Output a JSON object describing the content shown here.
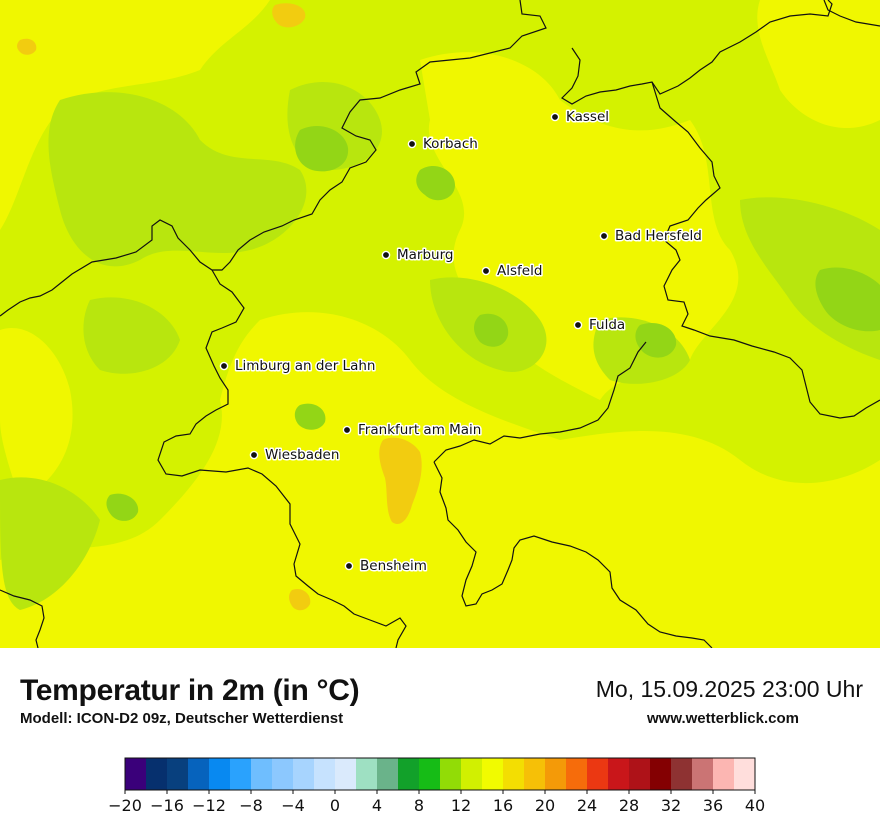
{
  "map": {
    "colors": {
      "base": "#d4f200",
      "warm": "#f0f700",
      "warmer": "#f3f000",
      "cool": "#b8e60e",
      "cooler": "#93d616",
      "hot": "#f2cc10",
      "border": "#111111"
    },
    "cities": [
      {
        "name": "Kassel"
      },
      {
        "name": "Korbach"
      },
      {
        "name": "Bad Hersfeld"
      },
      {
        "name": "Marburg"
      },
      {
        "name": "Alsfeld"
      },
      {
        "name": "Fulda"
      },
      {
        "name": "Limburg an der Lahn"
      },
      {
        "name": "Frankfurt am Main"
      },
      {
        "name": "Wiesbaden"
      },
      {
        "name": "Bensheim"
      }
    ]
  },
  "info": {
    "title": "Temperatur in 2m (in °C)",
    "model": "Modell: ICON-D2 09z, Deutscher Wetterdienst",
    "datetime": "Mo, 15.09.2025 23:00 Uhr",
    "website": "www.wetterblick.com"
  },
  "colorbar": {
    "colors": [
      "#3a007a",
      "#06306e",
      "#08407e",
      "#0663bd",
      "#0889f1",
      "#2aa2fd",
      "#6fbefe",
      "#8cc8fe",
      "#a7d4fe",
      "#c6e2fe",
      "#daeafc",
      "#9ee0c2",
      "#6ab38a",
      "#12a12a",
      "#16bc16",
      "#92dc06",
      "#d1f001",
      "#f1fb00",
      "#f3de02",
      "#f6c007",
      "#f49a08",
      "#f66c0b",
      "#eb3812",
      "#c9161a",
      "#ae1218",
      "#840002",
      "#8e3232",
      "#cb7474",
      "#fcb6b2",
      "#ffdedc"
    ],
    "ticks": [
      "−20",
      "−16",
      "−12",
      "−8",
      "−4",
      "0",
      "4",
      "8",
      "12",
      "16",
      "20",
      "24",
      "28",
      "32",
      "36",
      "40"
    ]
  }
}
